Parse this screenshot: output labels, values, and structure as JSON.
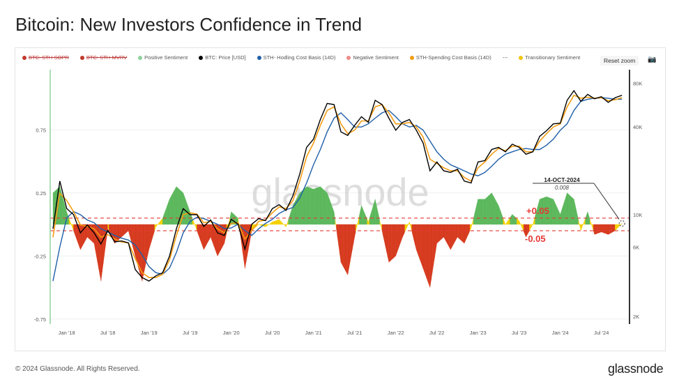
{
  "title": "Bitcoin: New Investors Confidence in Trend",
  "legend": [
    {
      "label": "BTC: STH-SOPR",
      "color": "#c0392b",
      "hidden": true
    },
    {
      "label": "BTC: STH-MVRV",
      "color": "#c0392b",
      "hidden": true
    },
    {
      "label": "Positive Sentiment",
      "color": "#8fd19e"
    },
    {
      "label": "BTC: Price [USD]",
      "color": "#000000"
    },
    {
      "label": "STH- Hodling Cost Basis (14D)",
      "color": "#1f5fa8"
    },
    {
      "label": "Negative Sentiment",
      "color": "#f08a8a"
    },
    {
      "label": "STH-Spending Cost Basis (14D)",
      "color": "#f39c12"
    },
    {
      "label": "---",
      "color": ""
    },
    {
      "label": "Transitionary Sentiment",
      "color": "#f1c40f"
    }
  ],
  "reset_zoom": "Reset zoom",
  "camera_icon": "camera-icon",
  "watermark": "glassnode",
  "footer": "© 2024 Glassnode. All Rights Reserved.",
  "brand": "glassnode",
  "chart_data": {
    "type": "area+line",
    "left_axis": {
      "ticks": [
        "0.75",
        "0.25",
        "-0.25",
        "-0.75"
      ],
      "values": [
        0.75,
        0.25,
        -0.25,
        -0.75
      ],
      "range": [
        -0.75,
        1.15
      ]
    },
    "right_axis": {
      "scale": "log",
      "ticks": [
        "80K",
        "40K",
        "10K",
        "6K",
        "2K"
      ],
      "values": [
        80000,
        40000,
        10000,
        6000,
        2000
      ]
    },
    "x_ticks": [
      "Jan '18",
      "Jul '18",
      "Jan '19",
      "Jul '19",
      "Jan '20",
      "Jul '20",
      "Jan '21",
      "Jul '21",
      "Jan '22",
      "Jul '22",
      "Jan '23",
      "Jul '23",
      "Jan '24",
      "Jul '24"
    ],
    "x_tick_dates": [
      "2018-01",
      "2018-07",
      "2019-01",
      "2019-07",
      "2020-01",
      "2020-07",
      "2021-01",
      "2021-07",
      "2022-01",
      "2022-07",
      "2023-01",
      "2023-07",
      "2024-01",
      "2024-07"
    ],
    "start_month": "2017-11",
    "thresholds": [
      {
        "value": 0.05,
        "label": "+0.05"
      },
      {
        "value": -0.05,
        "label": "-0.05"
      }
    ],
    "colors": {
      "positive": "#5cb85c",
      "negative": "#d63a1e",
      "transitionary": "#f5d000",
      "price": "#000000",
      "hodling": "#1f5fa8",
      "spending": "#f39c12",
      "threshold": "#e53935"
    },
    "annotation": {
      "date": "14-OCT-2024",
      "value": "0.008"
    },
    "sentiment": [
      0.25,
      0.3,
      0.1,
      -0.05,
      -0.2,
      -0.1,
      -0.15,
      -0.45,
      -0.03,
      -0.15,
      -0.1,
      -0.05,
      -0.25,
      -0.45,
      -0.2,
      -0.02,
      0.05,
      0.2,
      0.3,
      0.25,
      0.1,
      -0.05,
      -0.2,
      -0.1,
      -0.25,
      -0.15,
      0.1,
      0.05,
      -0.35,
      -0.05,
      0.0,
      -0.02,
      0.02,
      0.04,
      -0.02,
      0.15,
      0.25,
      0.3,
      0.28,
      0.3,
      0.25,
      0.1,
      -0.3,
      -0.4,
      -0.1,
      0.15,
      0.02,
      0.2,
      -0.05,
      -0.3,
      -0.25,
      -0.1,
      0.02,
      -0.2,
      -0.35,
      -0.5,
      -0.15,
      -0.1,
      -0.2,
      -0.1,
      -0.15,
      -0.03,
      0.2,
      0.2,
      0.25,
      0.15,
      0.0,
      0.08,
      0.03,
      -0.1,
      0.0,
      0.2,
      0.22,
      0.2,
      0.08,
      0.25,
      0.2,
      -0.05,
      0.1,
      -0.08,
      -0.06,
      -0.08,
      -0.05,
      0.008
    ],
    "price": [
      8000,
      17000,
      11000,
      10000,
      7500,
      8500,
      7500,
      6300,
      7800,
      6500,
      6600,
      6400,
      4200,
      3700,
      3500,
      3800,
      4000,
      5200,
      8000,
      11000,
      10000,
      10000,
      8300,
      9200,
      7500,
      7200,
      9300,
      8600,
      5800,
      8600,
      9400,
      9100,
      11000,
      11700,
      10700,
      13500,
      19000,
      29000,
      33000,
      45000,
      58000,
      57000,
      37000,
      35000,
      41000,
      47000,
      43000,
      61000,
      57000,
      46000,
      38000,
      43000,
      45000,
      38000,
      31000,
      20000,
      23000,
      20000,
      19500,
      20500,
      17000,
      16500,
      23000,
      23500,
      28000,
      29000,
      27000,
      30500,
      29000,
      26000,
      27000,
      34500,
      37700,
      42000,
      42500,
      61000,
      71000,
      60000,
      67000,
      62500,
      64500,
      59000,
      63500,
      66000
    ],
    "hodling_cost_basis": [
      3500,
      6000,
      9500,
      10500,
      10000,
      9200,
      8800,
      8000,
      7600,
      7200,
      6900,
      6700,
      6200,
      5300,
      4400,
      4000,
      3900,
      4300,
      5500,
      7500,
      9000,
      9600,
      9400,
      9000,
      8600,
      8000,
      8100,
      8600,
      7800,
      7200,
      8000,
      8700,
      9300,
      10200,
      10800,
      11200,
      13000,
      16500,
      22000,
      28000,
      37000,
      46000,
      50000,
      45000,
      40000,
      40000,
      42000,
      46000,
      50000,
      52000,
      47000,
      42000,
      40000,
      41000,
      38000,
      32000,
      27000,
      24000,
      22000,
      21000,
      20000,
      19000,
      18500,
      19500,
      21500,
      24000,
      26000,
      27000,
      28000,
      28500,
      28000,
      28000,
      30000,
      33000,
      38000,
      42000,
      52000,
      60000,
      62000,
      63000,
      63500,
      63000,
      62000,
      62000
    ],
    "spending_cost_basis": [
      7000,
      14000,
      12500,
      10500,
      8500,
      8300,
      8000,
      7000,
      7300,
      6800,
      6500,
      6400,
      5000,
      4000,
      3700,
      3700,
      3900,
      4900,
      7200,
      10000,
      10300,
      10100,
      8800,
      9000,
      8000,
      7500,
      8700,
      8800,
      6800,
      7800,
      9000,
      9200,
      10300,
      11300,
      11000,
      12500,
      17000,
      25000,
      31000,
      41000,
      52000,
      55000,
      42000,
      36000,
      38000,
      44000,
      44000,
      55000,
      57000,
      50000,
      42000,
      42000,
      43000,
      40000,
      34000,
      24000,
      22500,
      21000,
      20000,
      20000,
      18000,
      17000,
      21000,
      23000,
      26000,
      28500,
      27500,
      29500,
      29500,
      27000,
      27000,
      32000,
      36000,
      40000,
      42000,
      55000,
      66000,
      63000,
      64000,
      63000,
      63500,
      60500,
      61500,
      63500
    ]
  }
}
